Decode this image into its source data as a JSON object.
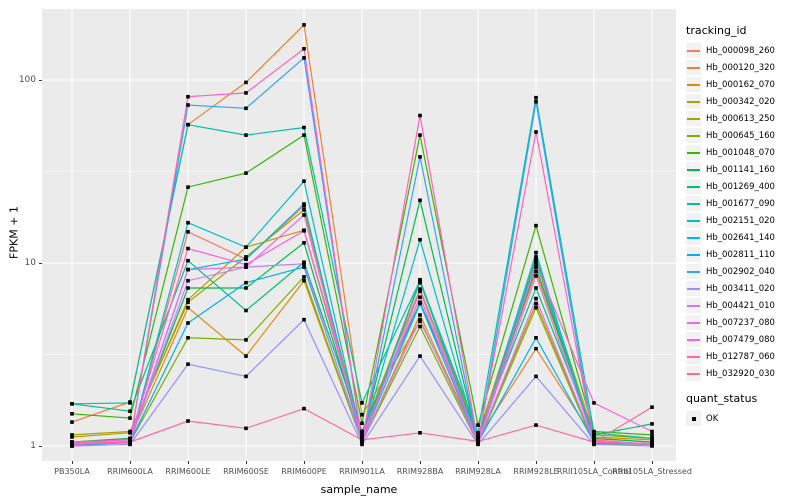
{
  "figure": {
    "background": "#FFFFFF",
    "panel_background": "#EBEBEB",
    "grid_color": "#FFFFFF",
    "point_color": "#000000",
    "tick_text_color": "#4D4D4D"
  },
  "axes": {
    "x_title": "sample_name",
    "y_title": "FPKM + 1",
    "y_tick_labels": [
      "100",
      "10",
      "1"
    ]
  },
  "legend": {
    "tracking_title": "tracking_id",
    "quant_title": "quant_status",
    "quant_items": [
      {
        "label": "OK",
        "marker": "black-square"
      }
    ]
  },
  "chart_data": {
    "type": "line",
    "title": "",
    "xlabel": "sample_name",
    "ylabel": "FPKM + 1",
    "y_scale": "log10",
    "ylim": [
      0.83,
      244
    ],
    "y_major_ticks": [
      1,
      10,
      100
    ],
    "y_minor_gridlines": [
      3.1623,
      31.623
    ],
    "grid": true,
    "legend_position": "right",
    "point_marker": "small black square (quant_status = OK)",
    "categories": [
      "PB350LA",
      "RRIM600LA",
      "RRIM600LE",
      "RRIM600SE",
      "RRIM600PE",
      "RRIM901LA",
      "RRIM928BA",
      "RRIM928LA",
      "RRIM928LE",
      "RRII105LA_Control",
      "RRII105LA_Stressed"
    ],
    "series": [
      {
        "name": "Hb_000098_260",
        "color": "#F8766D",
        "values": [
          1.02,
          1.05,
          14.8,
          10.5,
          20.5,
          1.1,
          8.1,
          1.08,
          10.2,
          1.08,
          1.02
        ]
      },
      {
        "name": "Hb_000120_320",
        "color": "#EA8331",
        "values": [
          1.35,
          1.74,
          57,
          97,
          200,
          1.48,
          4.8,
          1.1,
          3.4,
          1.1,
          1.05
        ]
      },
      {
        "name": "Hb_000162_070",
        "color": "#D89000",
        "values": [
          1.05,
          1.1,
          5.7,
          3.1,
          8.0,
          1.05,
          5.2,
          1.05,
          6.0,
          1.05,
          1.03
        ]
      },
      {
        "name": "Hb_000342_020",
        "color": "#C09B00",
        "values": [
          1.12,
          1.18,
          6.3,
          12.2,
          15.1,
          1.2,
          7.2,
          1.12,
          9.0,
          1.12,
          1.08
        ]
      },
      {
        "name": "Hb_000613_250",
        "color": "#A3A500",
        "values": [
          1.15,
          1.2,
          6.1,
          10.8,
          19.5,
          1.15,
          7.8,
          1.15,
          10.8,
          1.15,
          1.1
        ]
      },
      {
        "name": "Hb_000645_160",
        "color": "#7CAE00",
        "values": [
          1.03,
          1.05,
          3.9,
          3.8,
          8.4,
          1.05,
          4.5,
          1.03,
          5.7,
          1.03,
          1.02
        ]
      },
      {
        "name": "Hb_001048_070",
        "color": "#39B600",
        "values": [
          1.5,
          1.42,
          26,
          31,
          50,
          1.33,
          50,
          1.3,
          16,
          1.2,
          1.15
        ]
      },
      {
        "name": "Hb_001141_160",
        "color": "#00BB4E",
        "values": [
          1.05,
          1.1,
          7.3,
          7.3,
          12.9,
          1.1,
          22,
          1.05,
          9.5,
          1.1,
          1.05
        ]
      },
      {
        "name": "Hb_001269_400",
        "color": "#00BF7D",
        "values": [
          1.7,
          1.55,
          10.3,
          5.5,
          10.1,
          1.2,
          6.1,
          1.15,
          7.3,
          1.15,
          1.32
        ]
      },
      {
        "name": "Hb_001677_090",
        "color": "#00C1A3",
        "values": [
          1.7,
          1.72,
          57,
          50,
          55,
          1.72,
          8.0,
          1.18,
          80,
          1.18,
          1.1
        ]
      },
      {
        "name": "Hb_002151_020",
        "color": "#00BFC4",
        "values": [
          1.02,
          1.05,
          16.6,
          12.2,
          28,
          1.1,
          13.4,
          1.05,
          11.4,
          1.05,
          1.03
        ]
      },
      {
        "name": "Hb_002641_140",
        "color": "#00BAE0",
        "values": [
          1.02,
          1.04,
          9.2,
          10.5,
          21,
          1.05,
          8.0,
          1.04,
          10.5,
          1.04,
          1.02
        ]
      },
      {
        "name": "Hb_002811_110",
        "color": "#00B0F6",
        "values": [
          1.02,
          1.05,
          4.7,
          7.8,
          9.5,
          1.08,
          6.0,
          1.05,
          3.9,
          1.05,
          1.02
        ]
      },
      {
        "name": "Hb_002902_040",
        "color": "#35A2FF",
        "values": [
          1.0,
          1.05,
          73,
          70,
          132,
          1.05,
          38,
          1.03,
          76,
          1.05,
          1.02
        ]
      },
      {
        "name": "Hb_003411_020",
        "color": "#9590FF",
        "values": [
          1.0,
          1.02,
          2.8,
          2.4,
          4.9,
          1.02,
          3.1,
          1.02,
          2.4,
          1.02,
          1.0
        ]
      },
      {
        "name": "Hb_004421_010",
        "color": "#C77CFF",
        "values": [
          1.03,
          1.05,
          8.0,
          9.5,
          9.9,
          1.05,
          4.9,
          1.04,
          6.4,
          1.05,
          1.03
        ]
      },
      {
        "name": "Hb_007237_080",
        "color": "#E76BF3",
        "values": [
          1.04,
          1.06,
          9.2,
          9.5,
          18.3,
          1.08,
          7.0,
          1.05,
          8.5,
          1.06,
          1.03
        ]
      },
      {
        "name": "Hb_007479_080",
        "color": "#FA62DB",
        "values": [
          1.05,
          1.08,
          12.0,
          9.8,
          15.0,
          1.12,
          6.5,
          1.06,
          9.8,
          1.72,
          1.2
        ]
      },
      {
        "name": "Hb_012787_060",
        "color": "#FF62BC",
        "values": [
          1.02,
          1.05,
          81,
          85,
          148,
          1.05,
          64,
          1.05,
          52,
          1.05,
          1.02
        ]
      },
      {
        "name": "Hb_032920_030",
        "color": "#FF6A98",
        "values": [
          1.05,
          1.05,
          1.37,
          1.25,
          1.6,
          1.08,
          1.18,
          1.06,
          1.3,
          1.05,
          1.63
        ]
      }
    ]
  }
}
